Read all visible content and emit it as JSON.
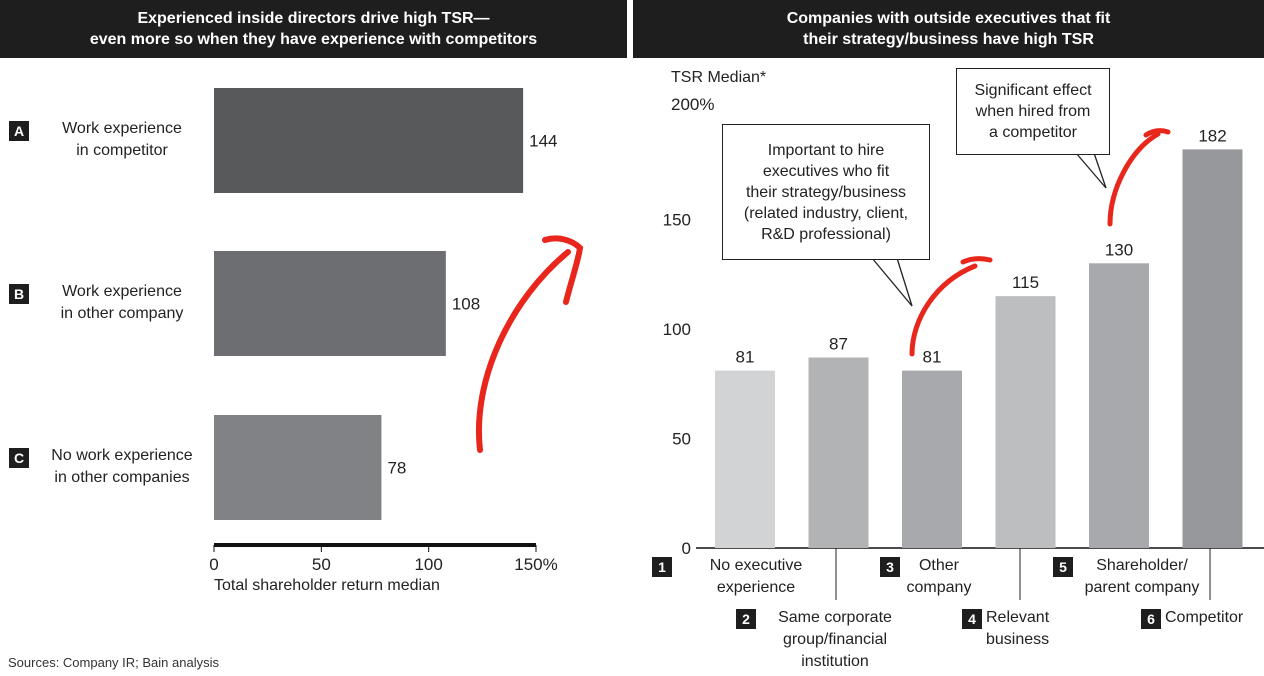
{
  "left_header": {
    "line1": "Experienced inside directors drive high TSR—",
    "line2": "even more so when they have experience with competitors"
  },
  "right_header": {
    "line1": "Companies with outside executives that fit",
    "line2": "their strategy/business have high TSR"
  },
  "callouts": {
    "hire_fit": [
      "Important to hire",
      "executives who fit",
      "their strategy/business",
      "(related industry, client,",
      "R&D professional)"
    ],
    "competitor": [
      "Significant effect",
      "when hired from",
      "a competitor"
    ]
  },
  "sources": "Sources: Company IR; Bain analysis",
  "colors": {
    "header_bg": "#1e1e1e",
    "arrow": "#e8261c",
    "bar_dark": "#58595b",
    "bar_mid": "#6d6e71",
    "bar_light": "#808285"
  },
  "chart_data": [
    {
      "type": "bar",
      "orientation": "horizontal",
      "categories": [
        {
          "badge": "A",
          "label": [
            "Work experience",
            "in competitor"
          ]
        },
        {
          "badge": "B",
          "label": [
            "Work experience",
            "in other company"
          ]
        },
        {
          "badge": "C",
          "label": [
            "No work experience",
            "in other companies"
          ]
        }
      ],
      "values": [
        144,
        108,
        78
      ],
      "value_labels": [
        "144",
        "108",
        "78"
      ],
      "xlabel": "Total shareholder return median",
      "xlim": [
        0,
        150
      ],
      "xticks": [
        "0",
        "50",
        "100",
        "150%"
      ],
      "grid": false
    },
    {
      "type": "bar",
      "orientation": "vertical",
      "ylabel": "TSR Median*",
      "ylim": [
        0,
        200
      ],
      "yticks": [
        "0",
        "50",
        "100",
        "150",
        "200%"
      ],
      "categories": [
        {
          "badge": "1",
          "label": [
            "No executive",
            "experience"
          ]
        },
        {
          "badge": "2",
          "label": [
            "Same corporate",
            "group/financial",
            "institution"
          ]
        },
        {
          "badge": "3",
          "label": [
            "Other",
            "company"
          ]
        },
        {
          "badge": "4",
          "label": [
            "Relevant",
            "business"
          ]
        },
        {
          "badge": "5",
          "label": [
            "Shareholder/",
            "parent company"
          ]
        },
        {
          "badge": "6",
          "label": [
            "Competitor"
          ]
        }
      ],
      "values": [
        81,
        87,
        81,
        115,
        130,
        182
      ],
      "value_labels": [
        "81",
        "87",
        "81",
        "115",
        "130",
        "182"
      ],
      "bar_colors": [
        "#d1d3d4",
        "#b2b3b5",
        "#a7a9ac",
        "#bcbec0",
        "#a7a9ac",
        "#97989b"
      ],
      "grid": false
    }
  ]
}
